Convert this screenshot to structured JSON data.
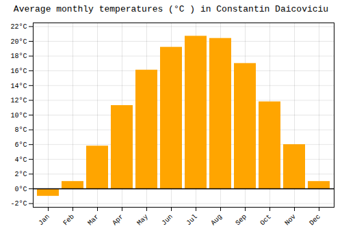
{
  "chart_data": {
    "type": "bar",
    "title": "Average monthly temperatures (°C ) in Constantin Daicoviciu",
    "categories": [
      "Jan",
      "Feb",
      "Mar",
      "Apr",
      "May",
      "Jun",
      "Jul",
      "Aug",
      "Sep",
      "Oct",
      "Nov",
      "Dec"
    ],
    "values": [
      -1.0,
      1.0,
      5.8,
      11.3,
      16.1,
      19.2,
      20.7,
      20.4,
      17.0,
      11.8,
      6.0,
      1.0
    ],
    "color": "#FFA500",
    "ylim": [
      -2.5,
      22.5
    ],
    "yticks": [
      {
        "value": -2,
        "label": "-2°C"
      },
      {
        "value": 0,
        "label": "0°C"
      },
      {
        "value": 2,
        "label": "2°C"
      },
      {
        "value": 4,
        "label": "4°C"
      },
      {
        "value": 6,
        "label": "6°C"
      },
      {
        "value": 8,
        "label": "8°C"
      },
      {
        "value": 10,
        "label": "10°C"
      },
      {
        "value": 12,
        "label": "12°C"
      },
      {
        "value": 14,
        "label": "14°C"
      },
      {
        "value": 16,
        "label": "16°C"
      },
      {
        "value": 18,
        "label": "18°C"
      },
      {
        "value": 20,
        "label": "20°C"
      },
      {
        "value": 22,
        "label": "22°C"
      }
    ],
    "grid": true
  }
}
